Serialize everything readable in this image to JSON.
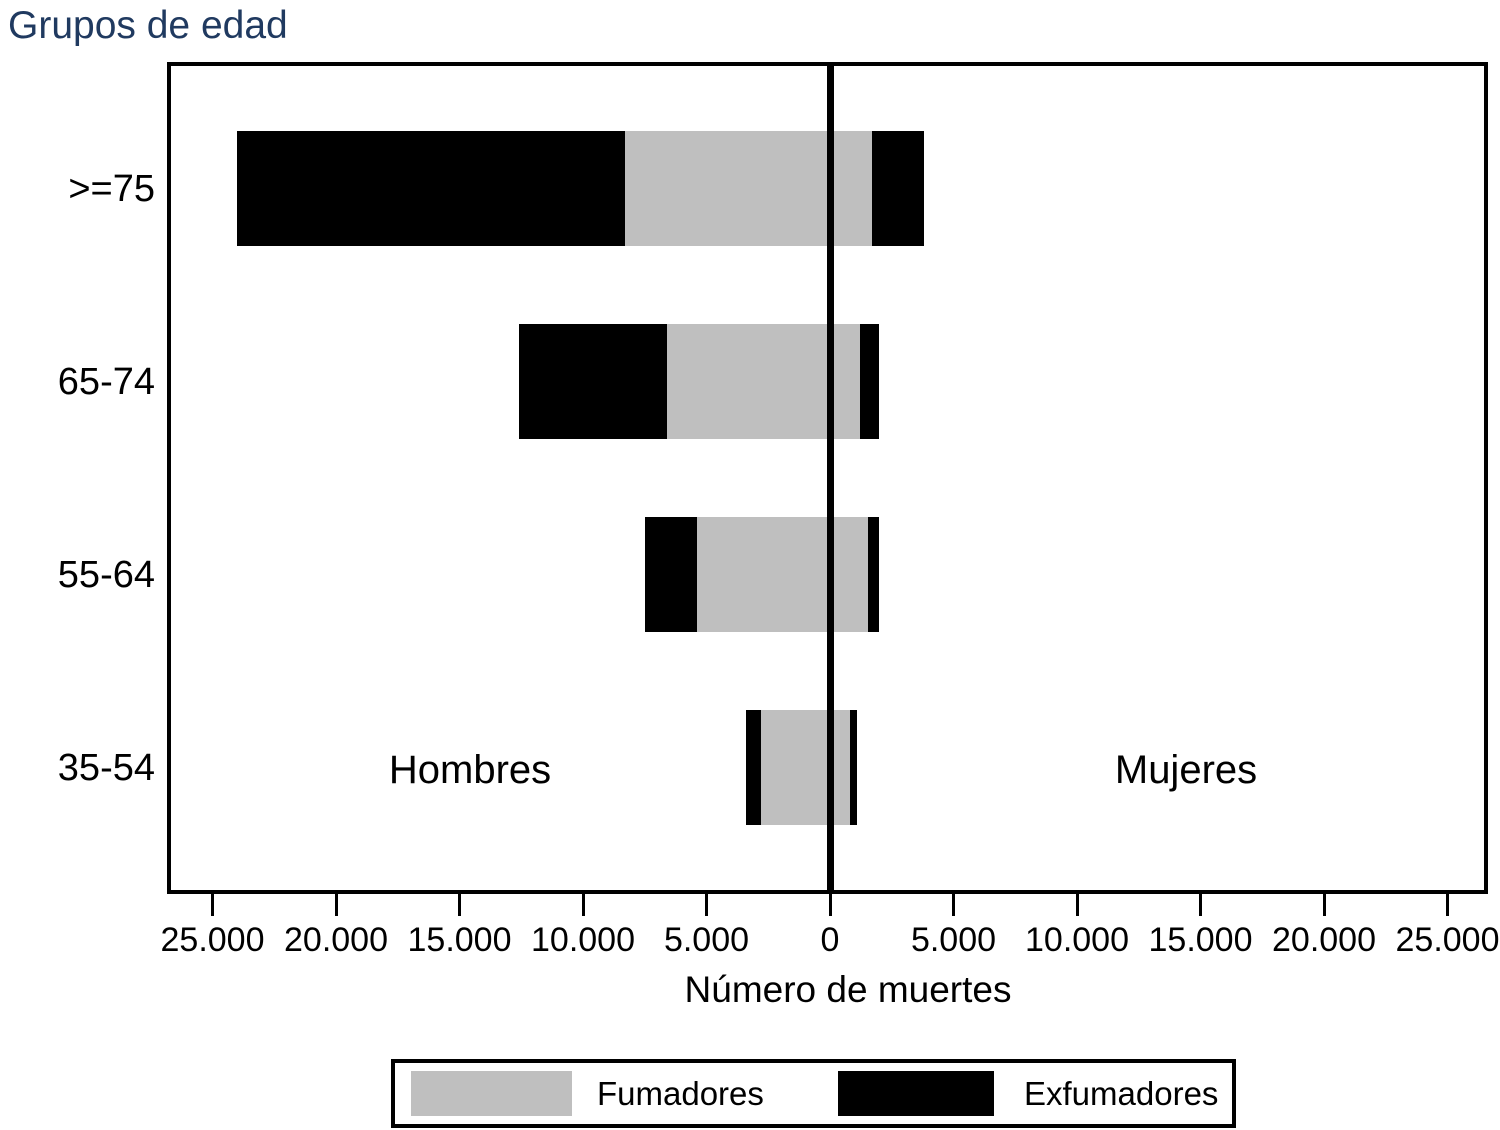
{
  "chart_data": {
    "type": "bar",
    "variant": "diverging-stacked-horizontal",
    "title": "Grupos de edad",
    "xlabel": "Número de muertes",
    "categories": [
      ">=75",
      "65-74",
      "55-64",
      "35-54"
    ],
    "side_labels": {
      "left": "Hombres",
      "right": "Mujeres"
    },
    "series": [
      {
        "name": "Fumadores",
        "color": "#bfbfbf",
        "hombres": [
          8300,
          6600,
          5400,
          2800
        ],
        "mujeres": [
          1700,
          1200,
          1550,
          800
        ]
      },
      {
        "name": "Exfumadores",
        "color": "#000000",
        "hombres": [
          15700,
          6000,
          2100,
          600
        ],
        "mujeres": [
          2100,
          800,
          450,
          300
        ]
      }
    ],
    "x_ticks": [
      {
        "value": -25000,
        "label": "25.000"
      },
      {
        "value": -20000,
        "label": "20.000"
      },
      {
        "value": -15000,
        "label": "15.000"
      },
      {
        "value": -10000,
        "label": "10.000"
      },
      {
        "value": -5000,
        "label": "5.000"
      },
      {
        "value": 0,
        "label": "0"
      },
      {
        "value": 5000,
        "label": "5.000"
      },
      {
        "value": 10000,
        "label": "10.000"
      },
      {
        "value": 15000,
        "label": "15.000"
      },
      {
        "value": 20000,
        "label": "20.000"
      },
      {
        "value": 25000,
        "label": "25.000"
      }
    ],
    "xlim": [
      -26800,
      26600
    ],
    "grid": false,
    "legend_position": "bottom",
    "legend": [
      "Fumadores",
      "Exfumadores"
    ],
    "colors": {
      "title_color": "#203a60",
      "axis_color": "#000000",
      "fumadores": "#bfbfbf",
      "exfumadores": "#000000"
    }
  }
}
